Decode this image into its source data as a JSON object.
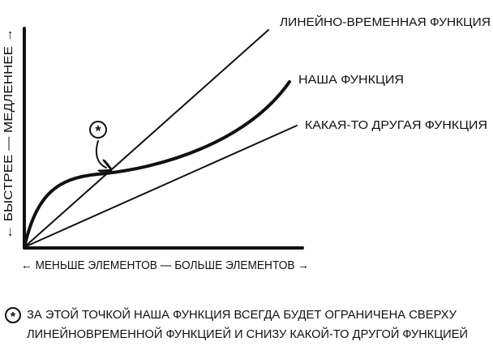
{
  "labels": {
    "linear": "ЛИНЕЙНО-ВРЕМЕННАЯ ФУНКЦИЯ",
    "ours": "НАША ФУНКЦИЯ",
    "other": "КАКАЯ-ТО ДРУГАЯ ФУНКЦИЯ"
  },
  "axes": {
    "x": "← МЕНЬШЕ ЭЛЕМЕНТОВ — БОЛЬШЕ ЭЛЕМЕНТОВ →",
    "y": "← БЫСТРЕЕ — МЕДЛЕННЕЕ →"
  },
  "marker": "*",
  "footnote": {
    "marker": "*",
    "lines": [
      "ЗА ЭТОЙ ТОЧКОЙ НАША ФУНКЦИЯ ВСЕГДА БУДЕТ ОГРАНИЧЕНА СВЕРХУ",
      "ЛИНЕЙНОВРЕМЕННОЙ ФУНКЦИЕЙ И СНИЗУ КАКОЙ-ТО ДРУГОЙ ФУНКЦИЕЙ"
    ]
  }
}
